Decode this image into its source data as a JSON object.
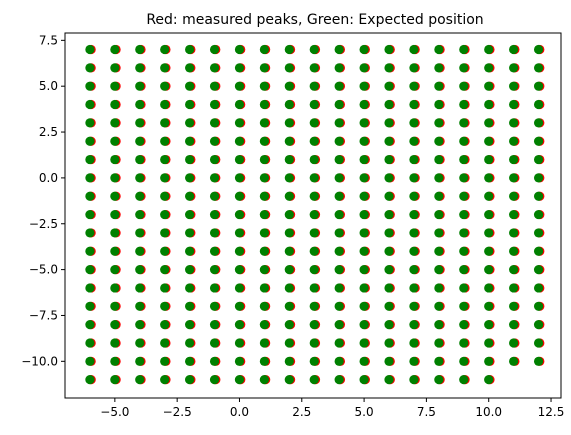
{
  "chart_data": {
    "type": "scatter",
    "title": "Red: measured peaks, Green: Expected position",
    "xlabel": "",
    "ylabel": "",
    "xlim": [
      -7.0,
      12.9
    ],
    "ylim": [
      -12.0,
      7.9
    ],
    "xticks": [
      -5.0,
      -2.5,
      0.0,
      2.5,
      5.0,
      7.5,
      10.0,
      12.5
    ],
    "xtick_labels": [
      "−5.0",
      "−2.5",
      "0.0",
      "2.5",
      "5.0",
      "7.5",
      "10.0",
      "12.5"
    ],
    "yticks": [
      7.5,
      5.0,
      2.5,
      0.0,
      -2.5,
      -5.0,
      -7.5,
      -10.0
    ],
    "ytick_labels": [
      "7.5",
      "5.0",
      "2.5",
      "0.0",
      "−2.5",
      "−5.0",
      "−7.5",
      "−10.0"
    ],
    "grid": false,
    "series": [
      {
        "description": "measured peaks",
        "color": "#ff0000",
        "grid_x": [
          -6,
          -5,
          -4,
          -3,
          -2,
          -1,
          0,
          1,
          2,
          3,
          4,
          5,
          6,
          7,
          8,
          9,
          10,
          11,
          12
        ],
        "grid_y": [
          7,
          6,
          5,
          4,
          3,
          2,
          1,
          0,
          -1,
          -2,
          -3,
          -4,
          -5,
          -6,
          -7,
          -8,
          -9,
          -10,
          -11
        ],
        "offset_x": 0.05,
        "missing": [
          [
            11,
            -11
          ],
          [
            12,
            -11
          ]
        ]
      },
      {
        "description": "expected position",
        "color": "#008000",
        "grid_x": [
          -6,
          -5,
          -4,
          -3,
          -2,
          -1,
          0,
          1,
          2,
          3,
          4,
          5,
          6,
          7,
          8,
          9,
          10,
          11,
          12
        ],
        "grid_y": [
          7,
          6,
          5,
          4,
          3,
          2,
          1,
          0,
          -1,
          -2,
          -3,
          -4,
          -5,
          -6,
          -7,
          -8,
          -9,
          -10,
          -11
        ],
        "offset_x": 0.0,
        "missing": [
          [
            11,
            -11
          ],
          [
            12,
            -11
          ]
        ]
      }
    ]
  }
}
